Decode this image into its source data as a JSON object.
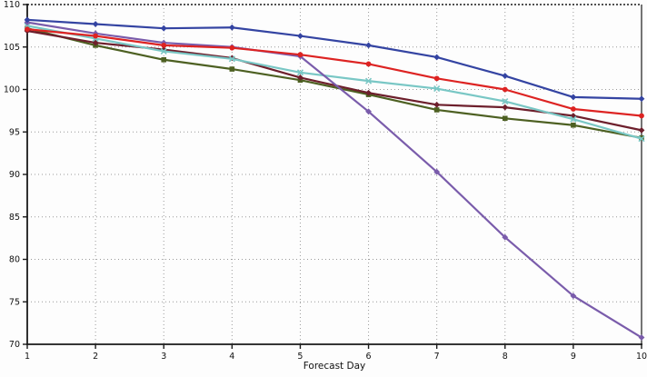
{
  "figure": {
    "title": "",
    "xlabel": "Forecast Day",
    "background_color": "#fdfdfd",
    "grid_color": "#9a9a9a",
    "axis_color": "#1a1a1a"
  },
  "chart_data": {
    "type": "line",
    "title": "",
    "xlabel": "Forecast Day",
    "ylabel": "",
    "x": [
      1,
      2,
      3,
      4,
      5,
      6,
      7,
      8,
      9,
      10
    ],
    "xticks": [
      "1",
      "2",
      "3",
      "4",
      "5",
      "6",
      "7",
      "8",
      "9",
      "10"
    ],
    "yticks": [
      "70",
      "75",
      "80",
      "85",
      "90",
      "95",
      "100",
      "105",
      "110"
    ],
    "ytick_values": [
      70,
      75,
      80,
      85,
      90,
      95,
      100,
      105,
      110
    ],
    "ylim": [
      70,
      110
    ],
    "xlim": [
      1,
      10
    ],
    "grid": "dotted",
    "legend": "none",
    "series": [
      {
        "name": "navy-line",
        "color": "#3444a2",
        "marker": "diamond",
        "values": [
          108.2,
          107.7,
          107.2,
          107.3,
          106.3,
          105.2,
          103.8,
          101.6,
          99.1,
          98.9
        ]
      },
      {
        "name": "red-line",
        "color": "#dd2322",
        "marker": "circle",
        "values": [
          107.1,
          106.3,
          105.2,
          104.9,
          104.1,
          103.0,
          101.3,
          100.0,
          97.7,
          96.9
        ]
      },
      {
        "name": "purple-line",
        "color": "#7a5cab",
        "marker": "diamond",
        "values": [
          107.9,
          106.6,
          105.5,
          105.0,
          103.9,
          97.4,
          90.3,
          82.6,
          75.7,
          70.8
        ]
      },
      {
        "name": "teal-line",
        "color": "#79c7c5",
        "marker": "x",
        "values": [
          107.5,
          106.0,
          104.5,
          103.6,
          102.0,
          101.0,
          100.1,
          98.6,
          96.5,
          94.2
        ]
      },
      {
        "name": "maroon-line",
        "color": "#6d1f2c",
        "marker": "diamond",
        "values": [
          106.9,
          105.5,
          104.7,
          103.7,
          101.4,
          99.6,
          98.2,
          97.9,
          96.9,
          95.2
        ]
      },
      {
        "name": "olive-line",
        "color": "#4d6022",
        "marker": "square",
        "values": [
          107.2,
          105.2,
          103.5,
          102.4,
          101.1,
          99.4,
          97.6,
          96.6,
          95.8,
          94.3
        ]
      }
    ]
  }
}
